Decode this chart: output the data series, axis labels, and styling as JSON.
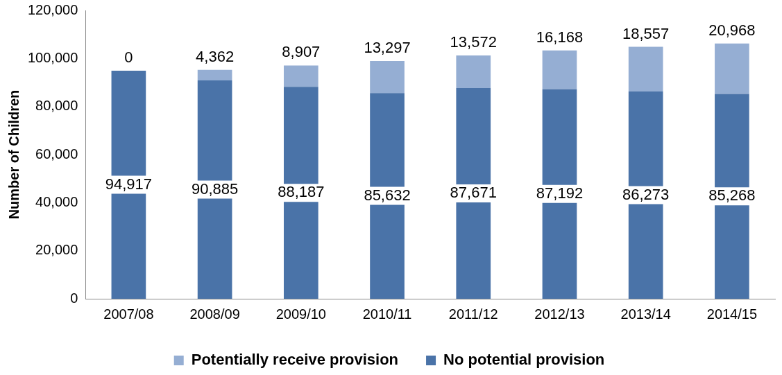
{
  "chart_data": {
    "type": "bar",
    "stacked": true,
    "ylabel": "Number of Children",
    "categories": [
      "2007/08",
      "2008/09",
      "2009/10",
      "2010/11",
      "2011/12",
      "2012/13",
      "2013/14",
      "2014/15"
    ],
    "series": [
      {
        "name": "No potential provision",
        "color": "#4a73a8",
        "values": [
          94917,
          90885,
          88187,
          85632,
          87671,
          87192,
          86273,
          85268
        ],
        "value_labels": [
          "94,917",
          "90,885",
          "88,187",
          "85,632",
          "87,671",
          "87,192",
          "86,273",
          "85,268"
        ]
      },
      {
        "name": "Potentially receive provision",
        "color": "#95aed3",
        "values": [
          0,
          4362,
          8907,
          13297,
          13572,
          16168,
          18557,
          20968
        ],
        "value_labels": [
          "0",
          "4,362",
          "8,907",
          "13,297",
          "13,572",
          "16,168",
          "18,557",
          "20,968"
        ]
      }
    ],
    "ylim": [
      0,
      120000
    ],
    "yticks": [
      0,
      {
        "value": 20000,
        "label": "20,000"
      },
      {
        "value": 40000,
        "label": "40,000"
      },
      {
        "value": 60000,
        "label": "60,000"
      },
      {
        "value": 80000,
        "label": "80,000"
      },
      {
        "value": 100000,
        "label": "100,000"
      },
      {
        "value": 120000,
        "label": "120,000"
      }
    ],
    "grid": false,
    "legend": "bottom"
  }
}
